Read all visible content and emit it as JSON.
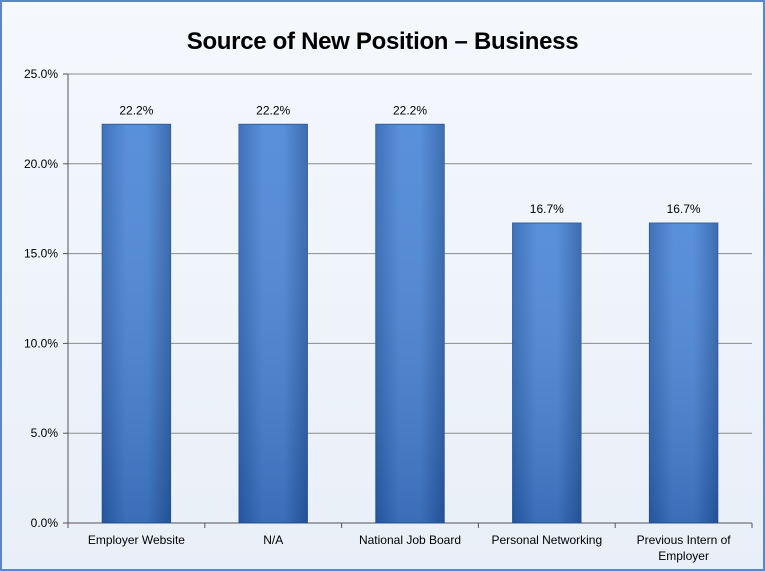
{
  "chart_data": {
    "type": "bar",
    "title": "Source of New Position – Business",
    "categories": [
      "Employer Website",
      "N/A",
      "National Job Board",
      "Personal Networking",
      "Previous Intern of Employer"
    ],
    "category_lines": [
      [
        "Employer Website"
      ],
      [
        "N/A"
      ],
      [
        "National Job Board"
      ],
      [
        "Personal Networking"
      ],
      [
        "Previous Intern of",
        "Employer"
      ]
    ],
    "values": [
      22.2,
      22.2,
      22.2,
      16.7,
      16.7
    ],
    "data_labels": [
      "22.2%",
      "22.2%",
      "22.2%",
      "16.7%",
      "16.7%"
    ],
    "y_ticks": [
      0,
      5,
      10,
      15,
      20,
      25
    ],
    "y_tick_labels": [
      "0.0%",
      "5.0%",
      "10.0%",
      "15.0%",
      "20.0%",
      "25.0%"
    ],
    "ylim": [
      0,
      25
    ],
    "xlabel": "",
    "ylabel": "",
    "grid": true,
    "legend": "none",
    "colors": {
      "bar_light": "#5a95dd",
      "bar_mid": "#3a78cc",
      "bar_dark": "#2a5ea8",
      "grid": "#8c8c8c",
      "frame": "#5b87c5"
    }
  }
}
